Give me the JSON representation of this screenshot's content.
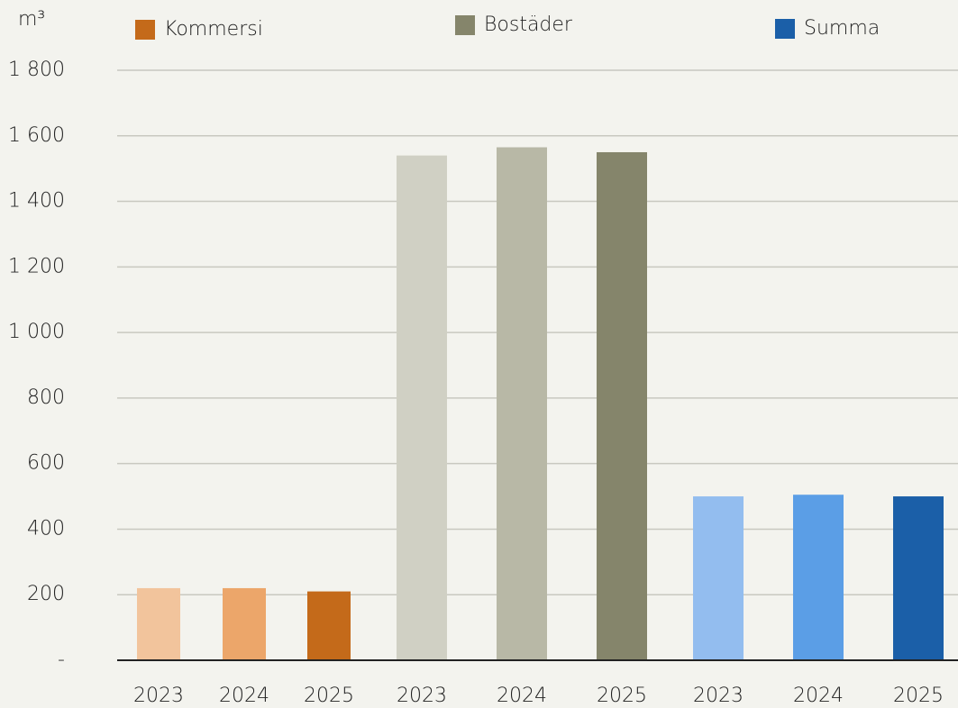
{
  "chart_data": {
    "type": "bar",
    "y_label": "m³",
    "ylim": [
      0,
      1800
    ],
    "yticks": [
      {
        "value": 0,
        "label": "-"
      },
      200,
      400,
      600,
      800,
      {
        "value": 1000,
        "label": "1 000"
      },
      {
        "value": 1200,
        "label": "1 200"
      },
      {
        "value": 1400,
        "label": "1 400"
      },
      {
        "value": 1600,
        "label": "1 600"
      },
      {
        "value": 1800,
        "label": "1 800"
      }
    ],
    "grid": true,
    "groups": [
      {
        "name": "Kommersi",
        "color": "#c46a1a",
        "categories": [
          "2023",
          "2024",
          "2025"
        ],
        "values": [
          220,
          220,
          210
        ],
        "colors": [
          "#f2c49c",
          "#eca66a",
          "#c46a1a"
        ]
      },
      {
        "name": "Bostäder",
        "color": "#85856b",
        "categories": [
          "2023",
          "2024",
          "2025"
        ],
        "values": [
          1540,
          1565,
          1550
        ],
        "colors": [
          "#d0d0c4",
          "#b8b8a6",
          "#85856b"
        ]
      },
      {
        "name": "Summa",
        "color": "#1b5fa8",
        "categories": [
          "2023",
          "2024",
          "2025"
        ],
        "values": [
          500,
          505,
          500
        ],
        "colors": [
          "#93bdef",
          "#5b9ee6",
          "#1b5fa8"
        ]
      }
    ]
  }
}
